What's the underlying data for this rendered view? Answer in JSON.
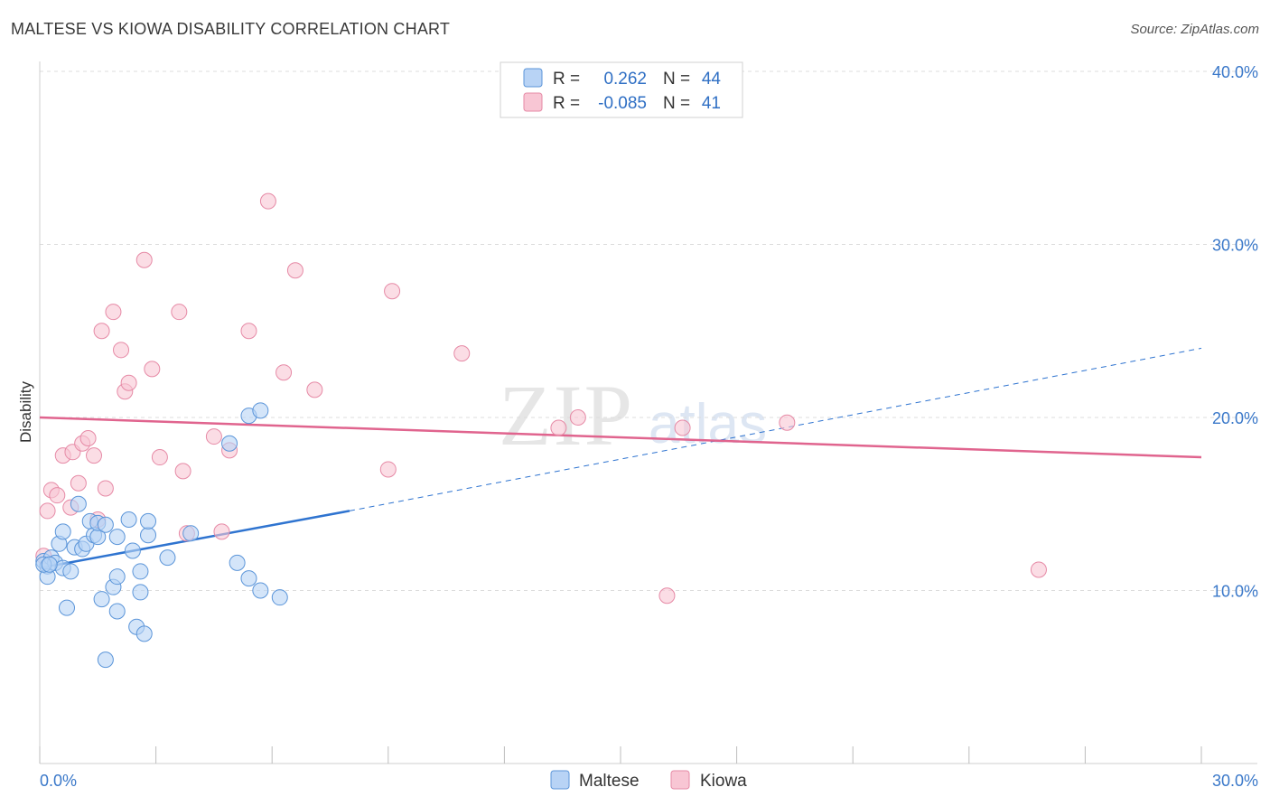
{
  "title": "MALTESE VS KIOWA DISABILITY CORRELATION CHART",
  "source": "Source: ZipAtlas.com",
  "watermark": {
    "zip": "ZIP",
    "atlas": "atlas"
  },
  "colors": {
    "maltese_fill": "#b8d3f5",
    "maltese_stroke": "#5b95d9",
    "maltese_line": "#2f74d0",
    "kiowa_fill": "#f8c6d4",
    "kiowa_stroke": "#e68aa6",
    "kiowa_line": "#e0648e",
    "grid": "#dcdcdc",
    "tick_text": "#3a78c9"
  },
  "legend": {
    "rows": [
      {
        "r_label": "R =",
        "r_value": "0.262",
        "n_label": "N =",
        "n_value": "44"
      },
      {
        "r_label": "R =",
        "r_value": "-0.085",
        "n_label": "N =",
        "n_value": "41"
      }
    ]
  },
  "chart_data": {
    "type": "scatter",
    "title": "MALTESE VS KIOWA DISABILITY CORRELATION CHART",
    "xlabel": "",
    "ylabel": "Disability",
    "xlim": [
      0,
      30
    ],
    "ylim": [
      0,
      40
    ],
    "x_tick_labels": [
      {
        "value": 0,
        "label": "0.0%"
      },
      {
        "value": 30,
        "label": "30.0%"
      }
    ],
    "y_tick_labels": [
      {
        "value": 10,
        "label": "10.0%"
      },
      {
        "value": 20,
        "label": "20.0%"
      },
      {
        "value": 30,
        "label": "30.0%"
      },
      {
        "value": 40,
        "label": "40.0%"
      }
    ],
    "series": [
      {
        "name": "Maltese",
        "R": 0.262,
        "N": 44,
        "trend": {
          "x0": 0,
          "y0": 11.3,
          "x1": 8,
          "y1": 14.6,
          "dash_to_x": 30,
          "dash_to_y": 24.0
        },
        "points": [
          [
            0.1,
            11.7
          ],
          [
            0.2,
            11.4
          ],
          [
            0.2,
            10.8
          ],
          [
            0.3,
            11.9
          ],
          [
            0.4,
            11.6
          ],
          [
            0.5,
            12.7
          ],
          [
            0.6,
            13.4
          ],
          [
            0.6,
            11.3
          ],
          [
            0.7,
            9.0
          ],
          [
            0.8,
            11.1
          ],
          [
            0.9,
            12.5
          ],
          [
            1.0,
            15.0
          ],
          [
            1.1,
            12.4
          ],
          [
            1.2,
            12.7
          ],
          [
            1.3,
            14.0
          ],
          [
            1.4,
            13.2
          ],
          [
            1.5,
            13.1
          ],
          [
            1.5,
            13.9
          ],
          [
            1.6,
            9.5
          ],
          [
            1.7,
            13.8
          ],
          [
            1.7,
            6.0
          ],
          [
            1.9,
            10.2
          ],
          [
            2.0,
            10.8
          ],
          [
            2.0,
            8.8
          ],
          [
            2.0,
            13.1
          ],
          [
            2.3,
            14.1
          ],
          [
            2.4,
            12.3
          ],
          [
            2.5,
            7.9
          ],
          [
            2.6,
            9.9
          ],
          [
            2.6,
            11.1
          ],
          [
            2.7,
            7.5
          ],
          [
            2.8,
            13.2
          ],
          [
            2.8,
            14.0
          ],
          [
            3.3,
            11.9
          ],
          [
            3.9,
            13.3
          ],
          [
            4.9,
            18.5
          ],
          [
            5.1,
            11.6
          ],
          [
            5.4,
            10.7
          ],
          [
            5.4,
            20.1
          ],
          [
            5.7,
            20.4
          ],
          [
            5.7,
            10.0
          ],
          [
            6.2,
            9.6
          ],
          [
            0.1,
            11.5
          ],
          [
            0.25,
            11.5
          ]
        ]
      },
      {
        "name": "Kiowa",
        "R": -0.085,
        "N": 41,
        "trend": {
          "x0": 0,
          "y0": 20.0,
          "x1": 30,
          "y1": 17.7
        },
        "points": [
          [
            0.1,
            12.0
          ],
          [
            0.2,
            14.6
          ],
          [
            0.3,
            15.8
          ],
          [
            0.45,
            15.5
          ],
          [
            0.6,
            17.8
          ],
          [
            0.8,
            14.8
          ],
          [
            0.85,
            18.0
          ],
          [
            1.0,
            16.2
          ],
          [
            1.1,
            18.5
          ],
          [
            1.25,
            18.8
          ],
          [
            1.4,
            17.8
          ],
          [
            1.5,
            14.1
          ],
          [
            1.6,
            25.0
          ],
          [
            1.7,
            15.9
          ],
          [
            1.9,
            26.1
          ],
          [
            2.1,
            23.9
          ],
          [
            2.2,
            21.5
          ],
          [
            2.3,
            22.0
          ],
          [
            2.7,
            29.1
          ],
          [
            2.9,
            22.8
          ],
          [
            3.1,
            17.7
          ],
          [
            3.6,
            26.1
          ],
          [
            3.7,
            16.9
          ],
          [
            3.8,
            13.3
          ],
          [
            4.5,
            18.9
          ],
          [
            4.7,
            13.4
          ],
          [
            4.9,
            18.1
          ],
          [
            5.4,
            25.0
          ],
          [
            5.9,
            32.5
          ],
          [
            6.3,
            22.6
          ],
          [
            6.6,
            28.5
          ],
          [
            7.1,
            21.6
          ],
          [
            9.0,
            17.0
          ],
          [
            9.1,
            27.3
          ],
          [
            10.9,
            23.7
          ],
          [
            13.4,
            19.4
          ],
          [
            13.9,
            20.0
          ],
          [
            16.2,
            9.7
          ],
          [
            16.6,
            19.4
          ],
          [
            19.3,
            19.7
          ],
          [
            25.8,
            11.2
          ]
        ]
      }
    ]
  },
  "bottom_legend": [
    {
      "label": "Maltese"
    },
    {
      "label": "Kiowa"
    }
  ]
}
